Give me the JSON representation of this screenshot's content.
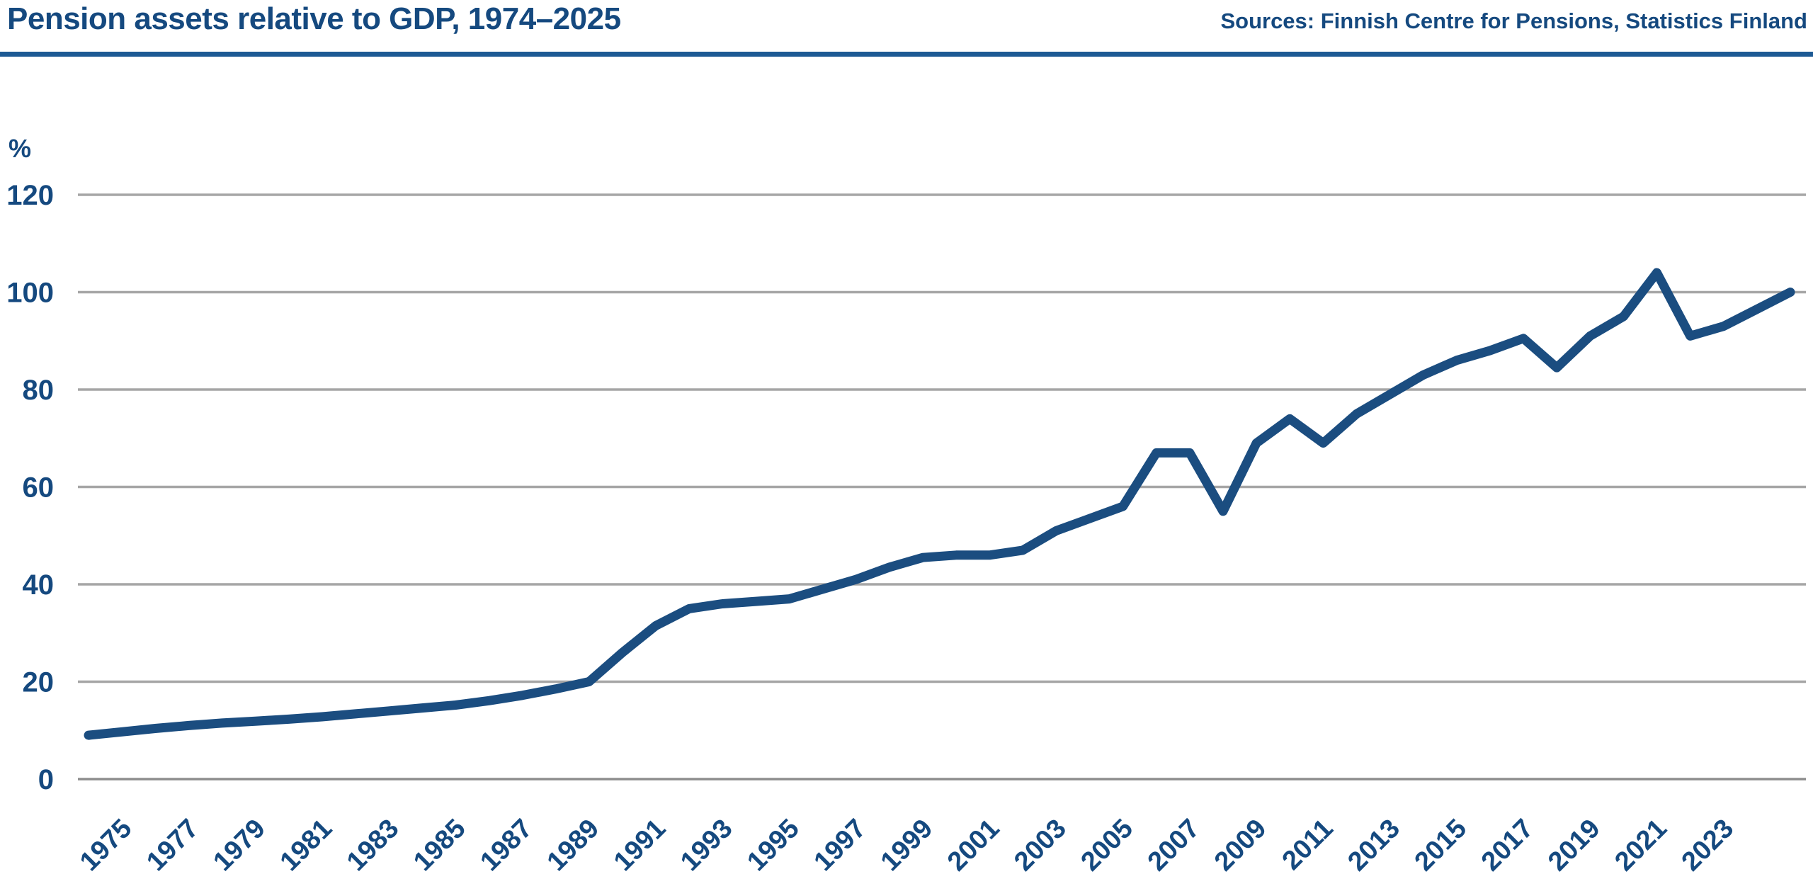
{
  "header": {
    "title": "Pension assets relative to GDP, 1974–2025",
    "sources": "Sources: Finnish Centre for Pensions, Statistics Finland"
  },
  "colors": {
    "line": "#1b4d80",
    "text_blue": "#15497f",
    "header_rule": "#1d5a94",
    "gridline": "#a6a6a6",
    "zero_line": "#8d8d8d",
    "background": "#ffffff"
  },
  "chart_data": {
    "type": "line",
    "title": "Pension assets relative to GDP, 1974–2025",
    "series_name": "Pension assets relative to GDP",
    "unit_label": "%",
    "xlabel": "",
    "ylabel": "%",
    "ylim": [
      0,
      120
    ],
    "grid": "horizontal",
    "legend_position": "none",
    "yticks": [
      0,
      20,
      40,
      60,
      80,
      100,
      120
    ],
    "xticks": [
      1975,
      1977,
      1979,
      1981,
      1983,
      1985,
      1987,
      1989,
      1991,
      1993,
      1995,
      1997,
      1999,
      2001,
      2003,
      2005,
      2007,
      2009,
      2011,
      2013,
      2015,
      2017,
      2019,
      2021,
      2023
    ],
    "x": [
      1974,
      1975,
      1976,
      1977,
      1978,
      1979,
      1980,
      1981,
      1982,
      1983,
      1984,
      1985,
      1986,
      1987,
      1988,
      1989,
      1990,
      1991,
      1992,
      1993,
      1994,
      1995,
      1996,
      1997,
      1998,
      1999,
      2000,
      2001,
      2002,
      2003,
      2004,
      2005,
      2006,
      2007,
      2008,
      2009,
      2010,
      2011,
      2012,
      2013,
      2014,
      2015,
      2016,
      2017,
      2018,
      2019,
      2020,
      2021,
      2022,
      2023,
      2024,
      2025
    ],
    "values": [
      9,
      9.7,
      10.4,
      11,
      11.5,
      11.9,
      12.3,
      12.8,
      13.4,
      14,
      14.6,
      15.2,
      16.1,
      17.2,
      18.5,
      20,
      26,
      31.5,
      35,
      36,
      36.5,
      37,
      39,
      41,
      43.5,
      45.5,
      46,
      46,
      47,
      51,
      53.5,
      56,
      67,
      67,
      55,
      69,
      74,
      69,
      75,
      79,
      83,
      86,
      88,
      90.5,
      84.5,
      91,
      95,
      104,
      91,
      93,
      96.5,
      100
    ]
  }
}
